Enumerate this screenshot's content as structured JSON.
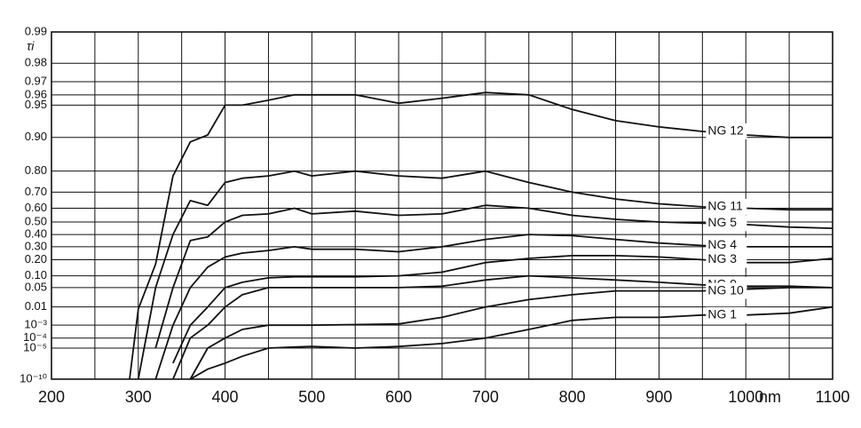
{
  "chart_data": {
    "type": "line",
    "y_label": "τi",
    "x_label": "nm",
    "yscale": "double-log",
    "xlim": [
      200,
      1100
    ],
    "ylim": [
      1e-10,
      0.99
    ],
    "xticks": [
      200,
      300,
      400,
      500,
      600,
      700,
      800,
      900,
      1000,
      1100
    ],
    "xminor": [
      250,
      350,
      450,
      550,
      650,
      750,
      850,
      950,
      1050
    ],
    "yticks": [
      0.99,
      0.98,
      0.97,
      0.96,
      0.95,
      {
        "value": 0.9,
        "label": "0.90"
      },
      {
        "value": 0.8,
        "label": "0.80"
      },
      {
        "value": 0.7,
        "label": "0.70"
      },
      {
        "value": 0.6,
        "label": "0.60"
      },
      {
        "value": 0.5,
        "label": "0.50"
      },
      {
        "value": 0.4,
        "label": "0.40"
      },
      {
        "value": 0.3,
        "label": "0.30"
      },
      {
        "value": 0.2,
        "label": "0.20"
      },
      {
        "value": 0.1,
        "label": "0.10"
      },
      0.05,
      0.01,
      {
        "value": 0.001,
        "label": "10⁻³"
      },
      {
        "value": 0.0001,
        "label": "10⁻⁴"
      },
      {
        "value": 1e-05,
        "label": "10⁻⁵"
      },
      {
        "value": 1e-10,
        "label": "10⁻¹⁰"
      }
    ],
    "grid": true,
    "x": [
      290,
      300,
      320,
      340,
      360,
      380,
      400,
      420,
      450,
      480,
      500,
      550,
      600,
      650,
      700,
      750,
      800,
      850,
      900,
      950,
      1000,
      1050,
      1100
    ],
    "series": [
      {
        "name": "NG 12",
        "color": "#111111",
        "values": [
          1e-10,
          0.008,
          0.17,
          0.78,
          0.89,
          0.905,
          0.95,
          0.95,
          0.955,
          0.96,
          0.96,
          0.96,
          0.952,
          0.957,
          0.962,
          0.96,
          0.945,
          0.93,
          0.92,
          0.912,
          0.905,
          0.9,
          0.9
        ]
      },
      {
        "name": "NG 11",
        "color": "#111111",
        "values": [
          null,
          1e-10,
          0.05,
          0.4,
          0.65,
          0.62,
          0.75,
          0.77,
          0.78,
          0.8,
          0.78,
          0.8,
          0.78,
          0.77,
          0.8,
          0.75,
          0.7,
          0.66,
          0.63,
          0.61,
          0.6,
          0.59,
          0.59
        ]
      },
      {
        "name": "NG 5",
        "color": "#111111",
        "values": [
          null,
          null,
          1e-05,
          0.05,
          0.35,
          0.38,
          0.5,
          0.55,
          0.56,
          0.6,
          0.56,
          0.58,
          0.55,
          0.56,
          0.62,
          0.6,
          0.55,
          0.52,
          0.5,
          0.49,
          0.48,
          0.46,
          0.45
        ]
      },
      {
        "name": "NG 4",
        "color": "#111111",
        "values": [
          null,
          null,
          1e-10,
          0.001,
          0.05,
          0.15,
          0.22,
          0.25,
          0.27,
          0.3,
          0.28,
          0.28,
          0.26,
          0.3,
          0.36,
          0.4,
          0.39,
          0.36,
          0.33,
          0.31,
          0.3,
          0.3,
          0.3
        ]
      },
      {
        "name": "NG 3",
        "color": "#111111",
        "values": [
          null,
          null,
          null,
          1e-07,
          0.001,
          0.01,
          0.05,
          0.07,
          0.09,
          0.095,
          0.095,
          0.095,
          0.1,
          0.12,
          0.18,
          0.21,
          0.23,
          0.23,
          0.22,
          0.2,
          0.18,
          0.18,
          0.21
        ]
      },
      {
        "name": "NG 9",
        "color": "#111111",
        "values": [
          null,
          null,
          null,
          1e-10,
          0.0001,
          0.001,
          0.01,
          0.03,
          0.05,
          0.05,
          0.05,
          0.05,
          0.05,
          0.055,
          0.08,
          0.1,
          0.09,
          0.08,
          0.07,
          0.06,
          0.055,
          0.055,
          0.05
        ]
      },
      {
        "name": "NG 10",
        "color": "#111111",
        "values": [
          null,
          null,
          null,
          null,
          1e-10,
          1e-05,
          0.0001,
          0.0005,
          0.001,
          0.001,
          0.001,
          0.0011,
          0.0012,
          0.003,
          0.01,
          0.02,
          0.03,
          0.04,
          0.04,
          0.04,
          0.045,
          0.05,
          0.05
        ]
      },
      {
        "name": "NG 1",
        "color": "#111111",
        "values": [
          null,
          null,
          null,
          null,
          1e-10,
          1e-08,
          1e-07,
          1e-06,
          1e-05,
          1.3e-05,
          1.5e-05,
          1e-05,
          1.5e-05,
          3e-05,
          0.0001,
          0.0005,
          0.002,
          0.003,
          0.003,
          0.004,
          0.004,
          0.005,
          0.01
        ]
      }
    ]
  }
}
